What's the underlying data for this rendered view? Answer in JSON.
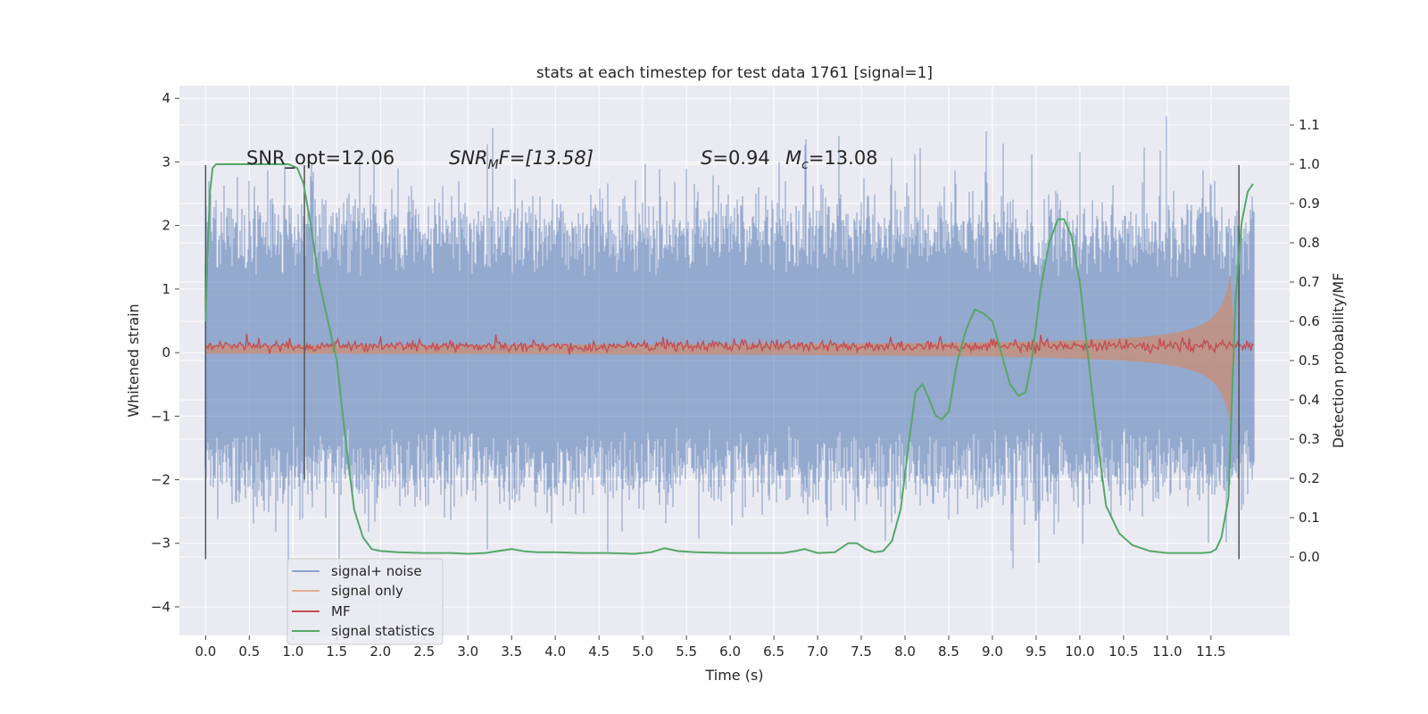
{
  "chart_data": {
    "type": "line",
    "title": "stats at each timestep for test data 1761 [signal=1]",
    "xlabel": "Time (s)",
    "ylabel": "Whitened strain",
    "ylabel_right": "Detection probability/MF",
    "xlim": [
      -0.3,
      12.4
    ],
    "ylim": [
      -4.45,
      4.2
    ],
    "ylim_right": [
      -0.2,
      1.2
    ],
    "x_ticks": [
      "0.0",
      "0.5",
      "1.0",
      "1.5",
      "2.0",
      "2.5",
      "3.0",
      "3.5",
      "4.0",
      "4.5",
      "5.0",
      "5.5",
      "6.0",
      "6.5",
      "7.0",
      "7.5",
      "8.0",
      "8.5",
      "9.0",
      "9.5",
      "10.0",
      "10.5",
      "11.0",
      "11.5"
    ],
    "y_ticks_left": [
      4,
      3,
      2,
      1,
      0,
      -1,
      -2,
      -3,
      -4
    ],
    "y_ticks_right": [
      "1.1",
      "1.0",
      "0.9",
      "0.8",
      "0.7",
      "0.6",
      "0.5",
      "0.4",
      "0.3",
      "0.2",
      "0.1",
      "0.0"
    ],
    "grid": true,
    "legend_position": "lower-left",
    "annotations": {
      "snr_opt": "SNR_opt=12.06",
      "snr_mf_a": "SNR",
      "snr_mf_sub": "M",
      "snr_mf_b": "F=[13.58]",
      "s_a": "S",
      "s_b": "=0.94",
      "mc_a": "M",
      "mc_sub": "c",
      "mc_b": "=13.08"
    },
    "window_lines": [
      {
        "x": 0.0,
        "y_range": [
          -3.25,
          2.95
        ]
      },
      {
        "x": 1.13,
        "y_range": [
          -2.0,
          2.95
        ]
      },
      {
        "x": 11.82,
        "y_range": [
          -3.25,
          2.95
        ]
      }
    ],
    "series": [
      {
        "name": "signal+ noise",
        "color": "#4c72b0",
        "noise_band": [
          -2.1,
          2.1
        ],
        "x_range": [
          0,
          12.0
        ]
      },
      {
        "name": "signal only",
        "color": "#dd8452",
        "chirp_end": 11.72,
        "max_amp": 1.55
      },
      {
        "name": "MF",
        "color": "#c44e52",
        "level": 0.1
      },
      {
        "name": "signal statistics",
        "color": "#55a868",
        "axis": "right",
        "x": [
          0.0,
          0.02,
          0.05,
          0.08,
          0.12,
          0.2,
          0.3,
          0.45,
          0.6,
          0.75,
          0.85,
          0.95,
          1.05,
          1.12,
          1.2,
          1.3,
          1.4,
          1.5,
          1.6,
          1.7,
          1.8,
          1.9,
          2.0,
          2.2,
          2.5,
          2.8,
          3.0,
          3.2,
          3.35,
          3.5,
          3.65,
          3.8,
          4.0,
          4.3,
          4.6,
          4.9,
          5.1,
          5.25,
          5.4,
          5.6,
          6.0,
          6.4,
          6.6,
          6.75,
          6.85,
          7.0,
          7.2,
          7.35,
          7.45,
          7.55,
          7.65,
          7.75,
          7.85,
          7.95,
          8.05,
          8.12,
          8.2,
          8.28,
          8.35,
          8.42,
          8.5,
          8.6,
          8.7,
          8.8,
          8.9,
          9.0,
          9.1,
          9.2,
          9.3,
          9.38,
          9.45,
          9.55,
          9.65,
          9.75,
          9.82,
          9.9,
          10.0,
          10.1,
          10.2,
          10.3,
          10.45,
          10.6,
          10.8,
          11.0,
          11.2,
          11.4,
          11.5,
          11.56,
          11.62,
          11.7,
          11.78,
          11.85,
          11.92,
          11.98
        ],
        "values": [
          0.6,
          0.76,
          0.93,
          0.99,
          1.0,
          1.0,
          1.0,
          1.0,
          1.0,
          1.0,
          1.0,
          1.0,
          0.99,
          0.95,
          0.85,
          0.7,
          0.6,
          0.5,
          0.3,
          0.12,
          0.05,
          0.02,
          0.015,
          0.012,
          0.01,
          0.01,
          0.008,
          0.01,
          0.015,
          0.02,
          0.014,
          0.012,
          0.012,
          0.01,
          0.01,
          0.008,
          0.012,
          0.022,
          0.015,
          0.012,
          0.01,
          0.01,
          0.01,
          0.015,
          0.02,
          0.01,
          0.012,
          0.035,
          0.035,
          0.02,
          0.012,
          0.015,
          0.04,
          0.12,
          0.3,
          0.42,
          0.44,
          0.4,
          0.36,
          0.35,
          0.37,
          0.5,
          0.58,
          0.63,
          0.62,
          0.6,
          0.52,
          0.44,
          0.41,
          0.42,
          0.5,
          0.68,
          0.8,
          0.86,
          0.86,
          0.82,
          0.7,
          0.5,
          0.3,
          0.13,
          0.06,
          0.03,
          0.015,
          0.01,
          0.01,
          0.01,
          0.012,
          0.02,
          0.05,
          0.15,
          0.65,
          0.85,
          0.93,
          0.95
        ]
      }
    ]
  }
}
